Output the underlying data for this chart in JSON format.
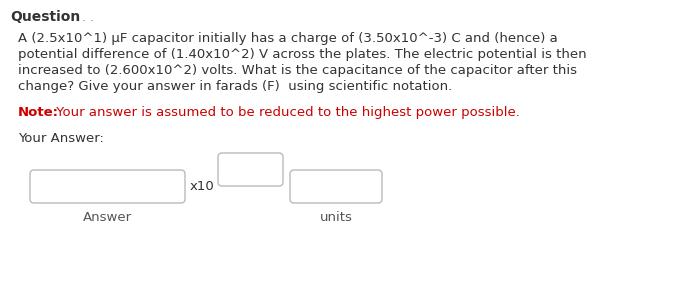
{
  "title": "Question",
  "title_dots": " . .",
  "body_lines": [
    "A (2.5x10^1) μF capacitor initially has a charge of (3.50x10^-3) C and (hence) a",
    "potential difference of (1.40x10^2) V across the plates. The electric potential is then",
    "increased to (2.600x10^2) volts. What is the capacitance of the capacitor after this",
    "change? Give your answer in farads (F)  using scientific notation."
  ],
  "note_bold": "Note:",
  "note_rest": " Your answer is assumed to be reduced to the highest power possible.",
  "note_color": "#cc0000",
  "your_answer_label": "Your Answer:",
  "x10_label": "x10",
  "answer_label": "Answer",
  "units_label": "units",
  "bg_color": "#ffffff",
  "text_color": "#333333",
  "box_edge_color": "#bbbbbb",
  "title_fontsize": 10,
  "body_fontsize": 9.5,
  "note_fontsize": 9.5,
  "label_fontsize": 9.5,
  "your_answer_fontsize": 9.5
}
